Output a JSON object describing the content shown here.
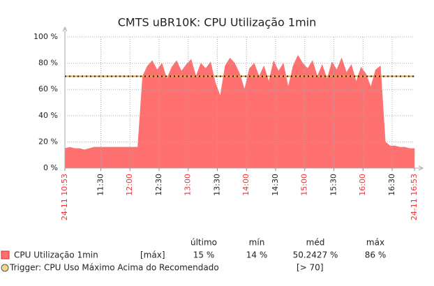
{
  "chart_data": {
    "type": "area",
    "title": "CMTS uBR10K: CPU Utilização 1min",
    "x": [
      "10:53",
      "10:58",
      "11:03",
      "11:08",
      "11:13",
      "11:18",
      "11:23",
      "11:28",
      "11:33",
      "11:38",
      "11:43",
      "11:48",
      "11:53",
      "11:58",
      "12:03",
      "12:08",
      "12:13",
      "12:18",
      "12:23",
      "12:28",
      "12:33",
      "12:38",
      "12:43",
      "12:48",
      "12:53",
      "12:58",
      "13:03",
      "13:08",
      "13:13",
      "13:18",
      "13:23",
      "13:28",
      "13:33",
      "13:38",
      "13:43",
      "13:48",
      "13:53",
      "13:58",
      "14:03",
      "14:08",
      "14:13",
      "14:18",
      "14:23",
      "14:28",
      "14:33",
      "14:38",
      "14:43",
      "14:48",
      "14:53",
      "14:58",
      "15:03",
      "15:08",
      "15:13",
      "15:18",
      "15:23",
      "15:28",
      "15:33",
      "15:38",
      "15:43",
      "15:48",
      "15:53",
      "15:58",
      "16:03",
      "16:08",
      "16:13",
      "16:18",
      "16:23",
      "16:28",
      "16:33",
      "16:38",
      "16:43",
      "16:48",
      "16:53"
    ],
    "series": [
      {
        "name": "CPU Utilização 1min",
        "color": "#ff7070",
        "values": [
          15,
          16,
          15,
          15,
          14,
          15,
          16,
          16,
          16,
          16,
          16,
          16,
          16,
          16,
          16,
          16,
          70,
          78,
          82,
          75,
          80,
          68,
          77,
          82,
          74,
          79,
          83,
          70,
          80,
          76,
          81,
          65,
          55,
          78,
          84,
          80,
          72,
          60,
          76,
          80,
          70,
          78,
          66,
          82,
          74,
          80,
          62,
          78,
          86,
          80,
          76,
          82,
          70,
          79,
          68,
          81,
          75,
          84,
          73,
          79,
          66,
          77,
          72,
          62,
          75,
          78,
          20,
          17,
          17,
          16,
          16,
          15,
          15
        ],
        "function": "[máx]",
        "stats": [
          "15 %",
          "14 %",
          "50.2427 %",
          "86 %"
        ]
      }
    ],
    "stat_headers": [
      "último",
      "mín",
      "méd",
      "máx"
    ],
    "threshold": {
      "value": 70,
      "name": "Trigger: CPU Uso Máximo Acima do Recomendado",
      "label": "[> 70]",
      "color": "#e8a33d"
    },
    "xlim": [
      "24-11 10:53",
      "24-11 16:53"
    ],
    "xticks": [
      "24-11 10:53",
      "11:30",
      "12:00",
      "12:30",
      "13:00",
      "13:30",
      "14:00",
      "14:30",
      "15:00",
      "15:30",
      "16:00",
      "16:30",
      "24-11 16:53"
    ],
    "ylim": [
      0,
      100
    ],
    "yticks": [
      {
        "value": 0,
        "label": "0 %"
      },
      {
        "value": 20,
        "label": "20 %"
      },
      {
        "value": 40,
        "label": "40 %"
      },
      {
        "value": 60,
        "label": "60 %"
      },
      {
        "value": 80,
        "label": "80 %"
      },
      {
        "value": 100,
        "label": "100 %"
      }
    ],
    "grid": true
  }
}
